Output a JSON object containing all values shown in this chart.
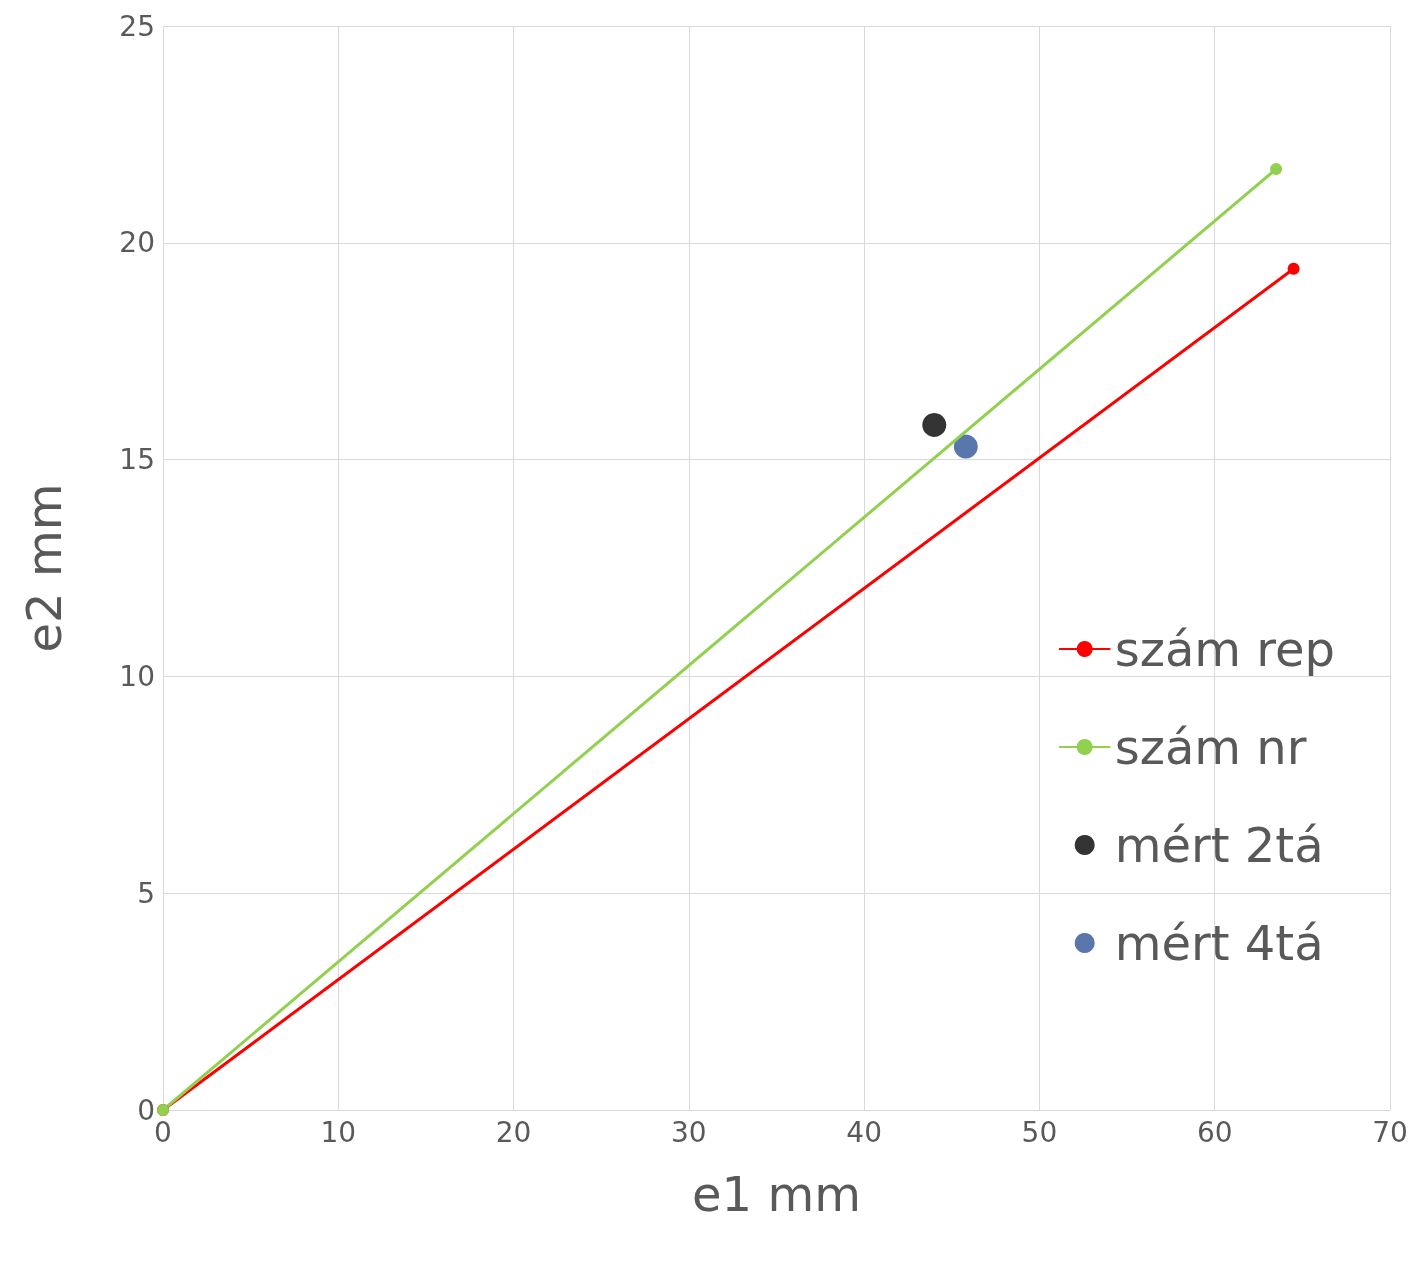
{
  "chart_data": {
    "type": "line",
    "xlabel": "e1 mm",
    "ylabel": "e2 mm",
    "series": [
      {
        "name": "szám rep",
        "color": "#ff0000",
        "x": [
          0,
          64.5
        ],
        "values": [
          0,
          19.4
        ]
      },
      {
        "name": "szám nr",
        "color": "#92d050",
        "x": [
          0,
          63.5
        ],
        "values": [
          0,
          21.7
        ]
      },
      {
        "name": "mért 2tá",
        "type": "scatter",
        "color": "#000000",
        "x": [
          44.0
        ],
        "values": [
          15.8
        ]
      },
      {
        "name": "mért 4tá",
        "type": "scatter",
        "color": "#2f5597",
        "x": [
          45.8
        ],
        "values": [
          15.3
        ]
      }
    ],
    "xlim": [
      0,
      70
    ],
    "xticks": [
      0,
      10,
      20,
      30,
      40,
      50,
      60,
      70
    ],
    "ylim": [
      0,
      25
    ],
    "yticks": [
      0,
      5,
      10,
      15,
      20,
      25
    ],
    "grid": true,
    "legend": "right",
    "marker": "circle",
    "line_style": "solid"
  }
}
